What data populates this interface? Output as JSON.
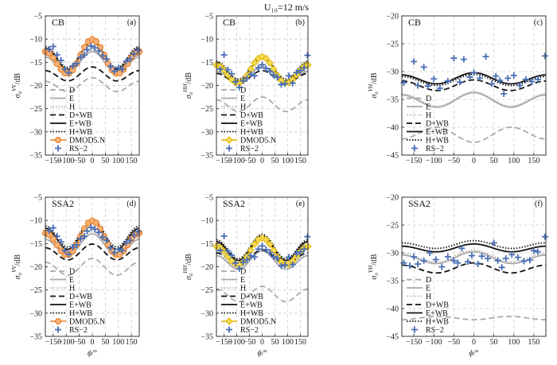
{
  "figure": {
    "suptitle": "U₁₀=12 m/s"
  },
  "styles": {
    "D": {
      "color": "#aaaaaa",
      "dash": "7,4",
      "width": 1.8,
      "marker": "none"
    },
    "E": {
      "color": "#aaaaaa",
      "dash": "",
      "width": 1.8,
      "marker": "none"
    },
    "H": {
      "color": "#aaaaaa",
      "dash": "1.5,2",
      "width": 1.4,
      "marker": "none"
    },
    "D+WB": {
      "color": "#111111",
      "dash": "7,4",
      "width": 1.8,
      "marker": "none"
    },
    "E+WB": {
      "color": "#111111",
      "dash": "",
      "width": 1.8,
      "marker": "none"
    },
    "H+WB": {
      "color": "#111111",
      "dash": "1.5,2",
      "width": 1.8,
      "marker": "none"
    },
    "DMOD5.N": {
      "color": "#e8822a",
      "dash": "",
      "width": 1.6,
      "marker": "circle",
      "fill": "#f5b27a"
    },
    "DMOD5.N_hh": {
      "color": "#e0b400",
      "dash": "",
      "width": 1.6,
      "marker": "diamond",
      "fill": "#f5dc5a"
    },
    "RS-2": {
      "color": "#4a6fb5",
      "marker": "plus"
    }
  },
  "chart_data": [
    {
      "type": "line",
      "panel": "a",
      "title": "CB",
      "letter": "(a)",
      "xlabel": "",
      "ylabel": "σo VV/dB",
      "ylabel_main": "σ",
      "ylabel_sub": "o",
      "ylabel_sup": "VV",
      "ylabel_unit": "/dB",
      "xlim": [
        -180,
        180
      ],
      "ylim": [
        -35,
        -5
      ],
      "xticks": [
        -150,
        -100,
        -50,
        0,
        50,
        100,
        150
      ],
      "yticks": [
        -35,
        -30,
        -25,
        -20,
        -15,
        -10,
        -5
      ],
      "legend": [
        "D",
        "E",
        "H",
        "D+WB",
        "E+WB",
        "H+WB",
        "DMOD5.N",
        "RS−2"
      ],
      "series": [
        {
          "name": "D",
          "style": "D",
          "a0": -20.0,
          "a1": 0.4,
          "a2": 1.3
        },
        {
          "name": "E",
          "style": "E",
          "a0": -15.2,
          "a1": 0.6,
          "a2": 1.9
        },
        {
          "name": "H",
          "style": "H",
          "a0": -14.8,
          "a1": 0.6,
          "a2": 1.9
        },
        {
          "name": "D+WB",
          "style": "D+WB",
          "a0": -17.7,
          "a1": 0.4,
          "a2": 1.3
        },
        {
          "name": "E+WB",
          "style": "E+WB",
          "a0": -13.9,
          "a1": 0.7,
          "a2": 2.6
        },
        {
          "name": "H+WB",
          "style": "H+WB",
          "a0": -13.5,
          "a1": 0.7,
          "a2": 2.6
        },
        {
          "name": "DMOD5.N",
          "style": "DMOD5.N",
          "a0": -14.4,
          "a1": 1.3,
          "a2": 3.0
        }
      ],
      "points": [
        [
          -165,
          -12.2
        ],
        [
          -150,
          -11.6
        ],
        [
          -135,
          -13.4
        ],
        [
          -120,
          -14.6
        ],
        [
          -105,
          -16.5
        ],
        [
          -90,
          -17.3
        ],
        [
          -75,
          -15.8
        ],
        [
          -60,
          -15.3
        ],
        [
          -45,
          -13.9
        ],
        [
          -30,
          -13.4
        ],
        [
          -20,
          -12.3
        ],
        [
          -5,
          -11.5
        ],
        [
          10,
          -11.9
        ],
        [
          25,
          -12.6
        ],
        [
          40,
          -13.6
        ],
        [
          55,
          -14.3
        ],
        [
          70,
          -15.9
        ],
        [
          85,
          -16.9
        ],
        [
          100,
          -16.2
        ],
        [
          115,
          -16.5
        ],
        [
          130,
          -14.8
        ],
        [
          145,
          -14.3
        ],
        [
          160,
          -13.2
        ],
        [
          175,
          -12.4
        ]
      ]
    },
    {
      "type": "line",
      "panel": "b",
      "title": "CB",
      "letter": "(b)",
      "xlabel": "",
      "ylabel": "σo HH/dB",
      "ylabel_main": "σ",
      "ylabel_sub": "o",
      "ylabel_sup": "HH",
      "ylabel_unit": "/dB",
      "xlim": [
        -180,
        180
      ],
      "ylim": [
        -35,
        -5
      ],
      "xticks": [
        -150,
        -100,
        -50,
        0,
        50,
        100,
        150
      ],
      "yticks": [
        -35,
        -30,
        -25,
        -20,
        -15,
        -10,
        -5
      ],
      "legend": [
        "D",
        "E",
        "H",
        "D+WB",
        "E+WB",
        "H+WB",
        "DMOD5.N",
        "RS−2"
      ],
      "series": [
        {
          "name": "D",
          "style": "D",
          "a0": -24.2,
          "a1": 0.3,
          "a2": 1.4
        },
        {
          "name": "E",
          "style": "E",
          "a0": -18.0,
          "a1": 0.5,
          "a2": 1.5
        },
        {
          "name": "H",
          "style": "H",
          "a0": -17.7,
          "a1": 0.5,
          "a2": 1.5
        },
        {
          "name": "D+WB",
          "style": "D+WB",
          "a0": -18.3,
          "a1": 0.3,
          "a2": 1.2
        },
        {
          "name": "E+WB",
          "style": "E+WB",
          "a0": -16.8,
          "a1": 0.6,
          "a2": 2.2
        },
        {
          "name": "H+WB",
          "style": "H+WB",
          "a0": -16.4,
          "a1": 0.6,
          "a2": 2.2
        },
        {
          "name": "DMOD5.N",
          "style": "DMOD5.N_hh",
          "a0": -17.1,
          "a1": 0.9,
          "a2": 2.4
        }
      ],
      "points": [
        [
          -165,
          -16.5
        ],
        [
          -150,
          -13.4
        ],
        [
          -135,
          -16.6
        ],
        [
          -120,
          -17.5
        ],
        [
          -105,
          -19.2
        ],
        [
          -90,
          -20.4
        ],
        [
          -75,
          -19.0
        ],
        [
          -60,
          -18.5
        ],
        [
          -45,
          -17.6
        ],
        [
          -30,
          -17.9
        ],
        [
          -15,
          -16.2
        ],
        [
          0,
          -15.5
        ],
        [
          15,
          -16.3
        ],
        [
          30,
          -16.9
        ],
        [
          45,
          -17.8
        ],
        [
          60,
          -18.2
        ],
        [
          75,
          -19.8
        ],
        [
          90,
          -19.6
        ],
        [
          105,
          -17.9
        ],
        [
          120,
          -19.5
        ],
        [
          135,
          -17.2
        ],
        [
          150,
          -16.8
        ],
        [
          165,
          -16.2
        ],
        [
          178,
          -13.5
        ]
      ]
    },
    {
      "type": "line",
      "panel": "c",
      "title": "CB",
      "letter": "(c)",
      "xlabel": "",
      "ylabel": "σo VH/dB",
      "ylabel_main": "σ",
      "ylabel_sub": "o",
      "ylabel_sup": "VH",
      "ylabel_unit": "/dB",
      "xlim": [
        -180,
        180
      ],
      "ylim": [
        -45,
        -20
      ],
      "xticks": [
        -150,
        -100,
        -50,
        0,
        50,
        100,
        150
      ],
      "yticks": [
        -45,
        -40,
        -35,
        -30,
        -25,
        -20
      ],
      "legend": [
        "D",
        "E",
        "H",
        "D+WB",
        "E+WB",
        "H+WB",
        "RS−2"
      ],
      "series": [
        {
          "name": "D",
          "style": "D",
          "a0": -41.2,
          "a1": -0.3,
          "a2": -1.2
        },
        {
          "name": "E",
          "style": "E",
          "a0": -35.2,
          "a1": 0.2,
          "a2": 1.2
        },
        {
          "name": "H",
          "style": "H",
          "a0": -35.0,
          "a1": 0.2,
          "a2": 1.2
        },
        {
          "name": "D+WB",
          "style": "D+WB",
          "a0": -32.5,
          "a1": 0.1,
          "a2": 0.9
        },
        {
          "name": "E+WB",
          "style": "E+WB",
          "a0": -31.3,
          "a1": 0.2,
          "a2": 0.9
        },
        {
          "name": "H+WB",
          "style": "H+WB",
          "a0": -31.6,
          "a1": 0.2,
          "a2": 0.9
        }
      ],
      "points": [
        [
          -175,
          -32.0
        ],
        [
          -150,
          -28.2
        ],
        [
          -140,
          -32.5
        ],
        [
          -125,
          -29.2
        ],
        [
          -115,
          -32.6
        ],
        [
          -100,
          -31.3
        ],
        [
          -85,
          -33.0
        ],
        [
          -65,
          -31.7
        ],
        [
          -50,
          -27.6
        ],
        [
          -35,
          -31.9
        ],
        [
          -25,
          -27.8
        ],
        [
          -10,
          -31.0
        ],
        [
          0,
          -30.2
        ],
        [
          15,
          -31.2
        ],
        [
          30,
          -27.3
        ],
        [
          45,
          -32.2
        ],
        [
          55,
          -30.8
        ],
        [
          65,
          -31.6
        ],
        [
          75,
          -34.0
        ],
        [
          85,
          -31.2
        ],
        [
          100,
          -30.7
        ],
        [
          115,
          -32.5
        ],
        [
          130,
          -31.4
        ],
        [
          145,
          -31.8
        ],
        [
          160,
          -31.4
        ],
        [
          178,
          -27.2
        ]
      ]
    },
    {
      "type": "line",
      "panel": "d",
      "title": "SSA2",
      "letter": "(d)",
      "xlabel": "",
      "ylabel": "σo VV/dB",
      "ylabel_main": "σ",
      "ylabel_sub": "o",
      "ylabel_sup": "VV",
      "ylabel_unit": "/dB",
      "xlim": [
        -180,
        180
      ],
      "ylim": [
        -35,
        -5
      ],
      "xticks": [
        -150,
        -100,
        -50,
        0,
        50,
        100,
        150
      ],
      "yticks": [
        -35,
        -30,
        -25,
        -20,
        -15,
        -10,
        -5
      ],
      "legend": [
        "D",
        "E",
        "H",
        "D+WB",
        "E+WB",
        "H+WB",
        "DMOD5.N",
        "RS−2"
      ],
      "series": [
        {
          "name": "D",
          "style": "D",
          "a0": -20.2,
          "a1": 0.4,
          "a2": 1.6
        },
        {
          "name": "E",
          "style": "E",
          "a0": -15.5,
          "a1": 0.6,
          "a2": 2.0
        },
        {
          "name": "H",
          "style": "H",
          "a0": -15.0,
          "a1": 0.6,
          "a2": 2.0
        },
        {
          "name": "D+WB",
          "style": "D+WB",
          "a0": -17.0,
          "a1": 0.4,
          "a2": 1.5
        },
        {
          "name": "E+WB",
          "style": "E+WB",
          "a0": -13.6,
          "a1": 0.7,
          "a2": 2.6
        },
        {
          "name": "H+WB",
          "style": "H+WB",
          "a0": -13.1,
          "a1": 0.7,
          "a2": 2.6
        },
        {
          "name": "DMOD5.N",
          "style": "DMOD5.N",
          "a0": -14.4,
          "a1": 1.3,
          "a2": 3.0
        }
      ],
      "points": [
        [
          -165,
          -12.2
        ],
        [
          -150,
          -11.6
        ],
        [
          -135,
          -13.4
        ],
        [
          -120,
          -14.6
        ],
        [
          -105,
          -16.5
        ],
        [
          -90,
          -17.3
        ],
        [
          -75,
          -15.8
        ],
        [
          -60,
          -15.3
        ],
        [
          -45,
          -13.9
        ],
        [
          -30,
          -13.4
        ],
        [
          -20,
          -12.3
        ],
        [
          -5,
          -11.5
        ],
        [
          10,
          -11.9
        ],
        [
          25,
          -12.6
        ],
        [
          40,
          -13.6
        ],
        [
          55,
          -14.3
        ],
        [
          70,
          -15.9
        ],
        [
          85,
          -16.9
        ],
        [
          100,
          -16.2
        ],
        [
          115,
          -16.5
        ],
        [
          130,
          -14.8
        ],
        [
          145,
          -14.3
        ],
        [
          160,
          -13.2
        ],
        [
          175,
          -12.4
        ]
      ]
    },
    {
      "type": "line",
      "panel": "e",
      "title": "SSA2",
      "letter": "(e)",
      "xlabel": "",
      "ylabel": "σo HH/dB",
      "ylabel_main": "σ",
      "ylabel_sub": "o",
      "ylabel_sup": "HH",
      "ylabel_unit": "/dB",
      "xlim": [
        -180,
        180
      ],
      "ylim": [
        -35,
        -5
      ],
      "xticks": [
        -150,
        -100,
        -50,
        0,
        50,
        100,
        150
      ],
      "yticks": [
        -35,
        -30,
        -25,
        -20,
        -15,
        -10,
        -5
      ],
      "legend": [
        "D",
        "E",
        "H",
        "D+WB",
        "E+WB",
        "H+WB",
        "DMOD5.N",
        "RS−2"
      ],
      "series": [
        {
          "name": "D",
          "style": "D",
          "a0": -26.0,
          "a1": 0.3,
          "a2": 1.5
        },
        {
          "name": "E",
          "style": "E",
          "a0": -18.8,
          "a1": 0.5,
          "a2": 1.7
        },
        {
          "name": "H",
          "style": "H",
          "a0": -18.4,
          "a1": 0.5,
          "a2": 1.7
        },
        {
          "name": "D+WB",
          "style": "D+WB",
          "a0": -18.0,
          "a1": 0.3,
          "a2": 1.3
        },
        {
          "name": "E+WB",
          "style": "E+WB",
          "a0": -16.3,
          "a1": 0.6,
          "a2": 2.3
        },
        {
          "name": "H+WB",
          "style": "H+WB",
          "a0": -15.9,
          "a1": 0.6,
          "a2": 2.3
        },
        {
          "name": "DMOD5.N",
          "style": "DMOD5.N_hh",
          "a0": -17.1,
          "a1": 0.9,
          "a2": 2.4
        }
      ],
      "points": [
        [
          -165,
          -16.5
        ],
        [
          -150,
          -13.4
        ],
        [
          -135,
          -16.6
        ],
        [
          -120,
          -17.5
        ],
        [
          -105,
          -19.2
        ],
        [
          -90,
          -20.4
        ],
        [
          -75,
          -19.0
        ],
        [
          -60,
          -18.5
        ],
        [
          -45,
          -17.6
        ],
        [
          -30,
          -17.9
        ],
        [
          -15,
          -16.2
        ],
        [
          0,
          -15.5
        ],
        [
          15,
          -16.3
        ],
        [
          30,
          -16.9
        ],
        [
          45,
          -17.8
        ],
        [
          60,
          -18.2
        ],
        [
          75,
          -19.8
        ],
        [
          90,
          -19.6
        ],
        [
          105,
          -17.9
        ],
        [
          120,
          -19.5
        ],
        [
          135,
          -17.2
        ],
        [
          150,
          -16.8
        ],
        [
          165,
          -16.2
        ],
        [
          178,
          -13.5
        ]
      ]
    },
    {
      "type": "line",
      "panel": "f",
      "title": "SSA2",
      "letter": "(f)",
      "xlabel": "",
      "ylabel": "σo VH/dB",
      "ylabel_main": "σ",
      "ylabel_sub": "o",
      "ylabel_sup": "VH",
      "ylabel_unit": "/dB",
      "xlim": [
        -180,
        180
      ],
      "ylim": [
        -45,
        -20
      ],
      "xticks": [
        -150,
        -100,
        -50,
        0,
        50,
        100,
        150
      ],
      "yticks": [
        -45,
        -40,
        -35,
        -30,
        -25,
        -20
      ],
      "legend": [
        "D",
        "E",
        "H",
        "D+WB",
        "E+WB",
        "H+WB",
        "RS−2"
      ],
      "series": [
        {
          "name": "D",
          "style": "D",
          "a0": -41.7,
          "a1": 0.0,
          "a2": -0.3
        },
        {
          "name": "E",
          "style": "E",
          "a0": -31.0,
          "a1": 0.3,
          "a2": 0.9
        },
        {
          "name": "H",
          "style": "H",
          "a0": -30.7,
          "a1": 0.3,
          "a2": 0.9
        },
        {
          "name": "D+WB",
          "style": "D+WB",
          "a0": -32.8,
          "a1": 0.2,
          "a2": 0.8
        },
        {
          "name": "E+WB",
          "style": "E+WB",
          "a0": -29.2,
          "a1": 0.2,
          "a2": 0.6
        },
        {
          "name": "H+WB",
          "style": "H+WB",
          "a0": -28.6,
          "a1": 0.2,
          "a2": 0.6
        }
      ],
      "points": [
        [
          -175,
          -31.8
        ],
        [
          -160,
          -32.3
        ],
        [
          -150,
          -30.7
        ],
        [
          -140,
          -32.0
        ],
        [
          -125,
          -31.4
        ],
        [
          -110,
          -30.0
        ],
        [
          -95,
          -31.2
        ],
        [
          -80,
          -32.5
        ],
        [
          -65,
          -30.7
        ],
        [
          -50,
          -31.4
        ],
        [
          -40,
          -31.8
        ],
        [
          -30,
          -29.2
        ],
        [
          -15,
          -31.6
        ],
        [
          -5,
          -30.5
        ],
        [
          10,
          -32.0
        ],
        [
          20,
          -30.6
        ],
        [
          35,
          -31.0
        ],
        [
          50,
          -28.2
        ],
        [
          60,
          -31.4
        ],
        [
          70,
          -32.6
        ],
        [
          80,
          -31.0
        ],
        [
          95,
          -30.3
        ],
        [
          110,
          -30.8
        ],
        [
          125,
          -31.5
        ],
        [
          140,
          -31.3
        ],
        [
          150,
          -29.6
        ],
        [
          160,
          -29.8
        ],
        [
          178,
          -27.1
        ]
      ]
    }
  ]
}
